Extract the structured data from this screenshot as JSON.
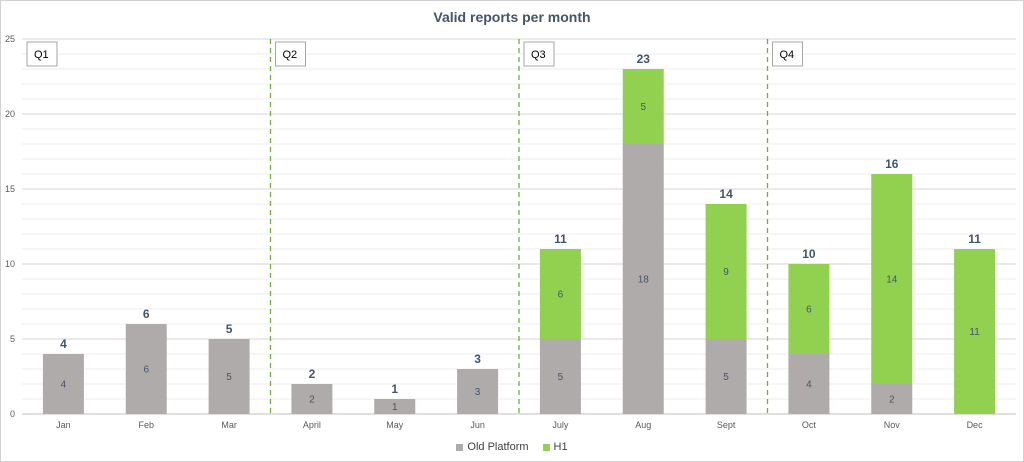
{
  "chart_data": {
    "type": "bar",
    "stacked": true,
    "title": "Valid reports per month",
    "xlabel": "",
    "ylabel": "",
    "ylim": [
      0,
      25
    ],
    "yticks": [
      "0",
      "5",
      "10",
      "15",
      "20",
      "25"
    ],
    "categories": [
      "Jan",
      "Feb",
      "Mar",
      "April",
      "May",
      "Jun",
      "July",
      "Aug",
      "Sept",
      "Oct",
      "Nov",
      "Dec"
    ],
    "series": [
      {
        "name": "Old Platform",
        "color": "#afabab",
        "values": [
          4,
          6,
          5,
          2,
          1,
          3,
          5,
          18,
          5,
          4,
          2,
          0
        ]
      },
      {
        "name": "H1",
        "color": "#92d050",
        "values": [
          0,
          0,
          0,
          0,
          0,
          0,
          6,
          5,
          9,
          6,
          14,
          11
        ]
      }
    ],
    "totals": [
      4,
      6,
      5,
      2,
      1,
      3,
      11,
      23,
      14,
      10,
      16,
      11
    ],
    "quarters": [
      {
        "label": "Q1",
        "start_index": 0
      },
      {
        "label": "Q2",
        "start_index": 3
      },
      {
        "label": "Q3",
        "start_index": 6
      },
      {
        "label": "Q4",
        "start_index": 9
      }
    ],
    "grid": true,
    "legend_position": "bottom",
    "quarter_divider_color": "#70ad47"
  }
}
